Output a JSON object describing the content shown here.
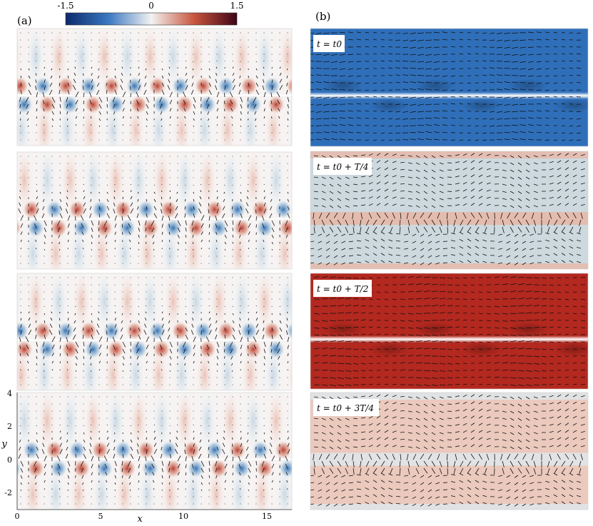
{
  "colorbar": {
    "ticks": [
      "-1.5",
      "0",
      "1.5"
    ],
    "colors": [
      "#0b2a6b",
      "#3a78c0",
      "#f2f2f2",
      "#c8553d",
      "#3e0518"
    ]
  },
  "panel_a": {
    "label": "(a)",
    "xlabel": "x",
    "ylabel": "y",
    "xticks": [
      "0",
      "5",
      "10",
      "15"
    ],
    "yticks": [
      "4",
      "2",
      "0",
      "-2"
    ]
  },
  "panel_b": {
    "label": "(b)",
    "time_labels": [
      "t = t0",
      "t = t0 + T/4",
      "t = t0 + T/2",
      "t = t0 + 3T/4"
    ],
    "backgrounds": [
      {
        "base": "#2f6fba",
        "band": "#ffffff"
      },
      {
        "base": "#cdd9df",
        "band": "#e8b6a6"
      },
      {
        "base": "#b3281f",
        "band": "#f4f0ee"
      },
      {
        "base": "#ebc9bd",
        "band": "#dfe8ec"
      }
    ]
  },
  "mode": {
    "count_left": 6,
    "count_right": 3
  }
}
